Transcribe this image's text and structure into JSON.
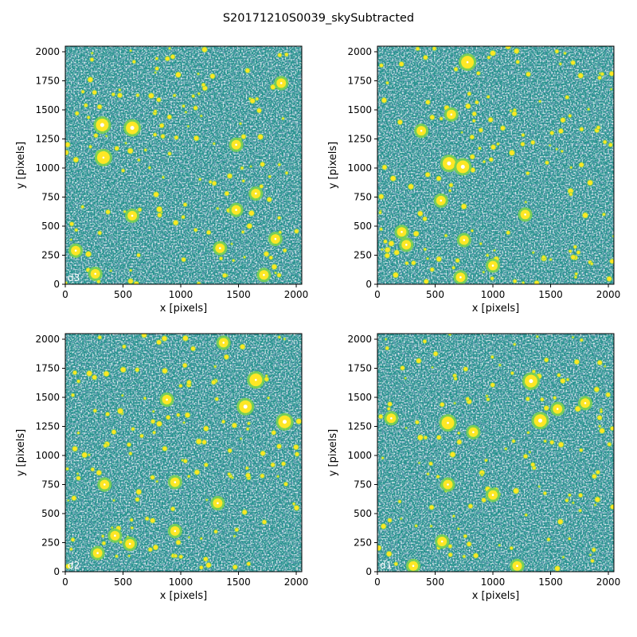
{
  "figure": {
    "title": "S20171210S0039_skySubtracted"
  },
  "colors": {
    "background_field": "#21918c",
    "noise_dark": "#3b528b",
    "noise_mid": "#2a788e",
    "source_bright": "#fde725",
    "source_halo": "#7ad151",
    "saturated": "#ffffff"
  },
  "chart_data": [
    {
      "type": "heatmap",
      "panel": "d3",
      "xlabel": "x [pixels]",
      "ylabel": "y [pixels]",
      "xlim": [
        0,
        2048
      ],
      "ylim": [
        0,
        2048
      ],
      "xticks": [
        0,
        500,
        1000,
        1500,
        2000
      ],
      "yticks": [
        0,
        250,
        500,
        750,
        1000,
        1250,
        1500,
        1750,
        2000
      ],
      "colormap": "viridis",
      "bright_sources": [
        [
          320,
          1370
        ],
        [
          580,
          1345
        ],
        [
          330,
          1090
        ],
        [
          1870,
          1730
        ],
        [
          1480,
          1200
        ],
        [
          1650,
          780
        ],
        [
          1340,
          310
        ],
        [
          1720,
          80
        ],
        [
          1820,
          390
        ],
        [
          580,
          590
        ],
        [
          90,
          290
        ],
        [
          1480,
          640
        ],
        [
          260,
          90
        ]
      ]
    },
    {
      "type": "heatmap",
      "panel": "",
      "xlabel": "x [pixels]",
      "ylabel": "y [pixels]",
      "xlim": [
        0,
        2048
      ],
      "ylim": [
        0,
        2048
      ],
      "xticks": [
        0,
        500,
        1000,
        1500,
        2000
      ],
      "yticks": [
        0,
        250,
        500,
        750,
        1000,
        1250,
        1500,
        1750,
        2000
      ],
      "colormap": "viridis",
      "bright_sources": [
        [
          620,
          1040
        ],
        [
          740,
          1010
        ],
        [
          780,
          1910
        ],
        [
          640,
          1460
        ],
        [
          380,
          1320
        ],
        [
          1000,
          160
        ],
        [
          750,
          380
        ],
        [
          250,
          340
        ],
        [
          720,
          60
        ],
        [
          1280,
          600
        ],
        [
          210,
          450
        ],
        [
          550,
          720
        ]
      ]
    },
    {
      "type": "heatmap",
      "panel": "d2",
      "xlabel": "x [pixels]",
      "ylabel": "y [pixels]",
      "xlim": [
        0,
        2048
      ],
      "ylim": [
        0,
        2048
      ],
      "xticks": [
        0,
        500,
        1000,
        1500,
        2000
      ],
      "yticks": [
        0,
        250,
        500,
        750,
        1000,
        1250,
        1500,
        1750,
        2000
      ],
      "colormap": "viridis",
      "bright_sources": [
        [
          1560,
          1420
        ],
        [
          1900,
          1290
        ],
        [
          1650,
          1650
        ],
        [
          950,
          350
        ],
        [
          430,
          310
        ],
        [
          560,
          240
        ],
        [
          280,
          160
        ],
        [
          1320,
          590
        ],
        [
          950,
          770
        ],
        [
          340,
          750
        ],
        [
          1370,
          1970
        ],
        [
          880,
          1480
        ]
      ]
    },
    {
      "type": "heatmap",
      "panel": "d1",
      "xlabel": "x [pixels]",
      "ylabel": "y [pixels]",
      "xlim": [
        0,
        2048
      ],
      "ylim": [
        0,
        2048
      ],
      "xticks": [
        0,
        500,
        1000,
        1500,
        2000
      ],
      "yticks": [
        0,
        250,
        500,
        750,
        1000,
        1250,
        1500,
        1750,
        2000
      ],
      "colormap": "viridis",
      "bright_sources": [
        [
          1410,
          1300
        ],
        [
          1330,
          1640
        ],
        [
          610,
          1280
        ],
        [
          830,
          1200
        ],
        [
          610,
          750
        ],
        [
          560,
          260
        ],
        [
          1210,
          50
        ],
        [
          310,
          50
        ],
        [
          120,
          1320
        ],
        [
          1560,
          1400
        ],
        [
          1800,
          1450
        ],
        [
          1000,
          660
        ]
      ]
    }
  ]
}
